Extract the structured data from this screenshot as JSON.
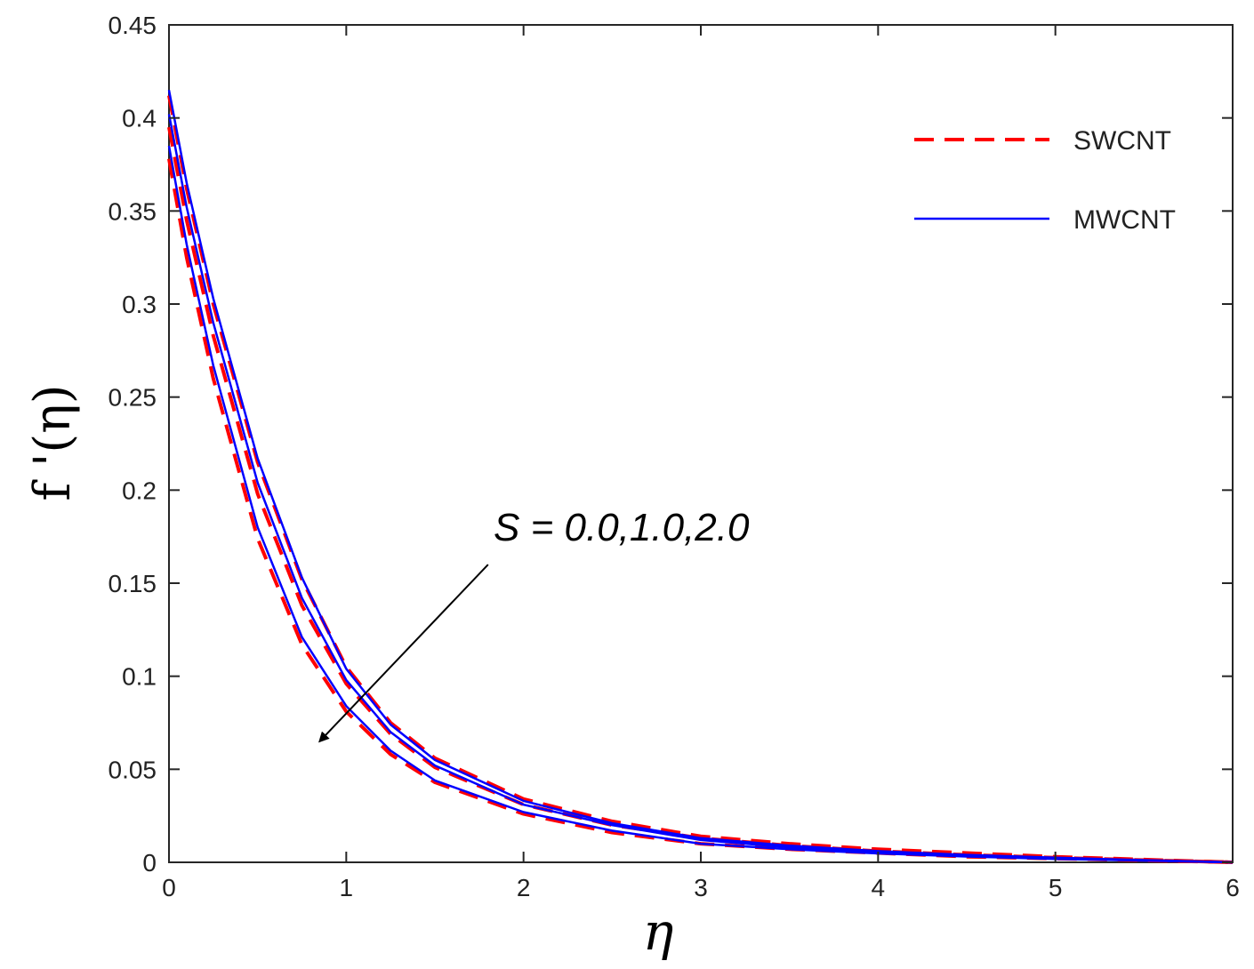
{
  "chart_data": {
    "type": "line",
    "title": "",
    "xlabel": "η",
    "ylabel": "f '(η)",
    "xlim": [
      0,
      6
    ],
    "ylim": [
      0,
      0.45
    ],
    "xticks": [
      0,
      1,
      2,
      3,
      4,
      5,
      6
    ],
    "yticks": [
      0,
      0.05,
      0.1,
      0.15,
      0.2,
      0.25,
      0.3,
      0.35,
      0.4,
      0.45
    ],
    "grid": false,
    "legend_position": "top-right",
    "annotation": {
      "text": "S = 0.0,1.0,2.0",
      "arrow_from": [
        1.8,
        0.16
      ],
      "arrow_to": [
        0.85,
        0.065
      ]
    },
    "colors": {
      "SWCNT": "#ff0000",
      "MWCNT": "#0000ff"
    },
    "x": [
      0,
      0.1,
      0.25,
      0.5,
      0.75,
      1.0,
      1.25,
      1.5,
      2.0,
      2.5,
      3.0,
      3.5,
      4.0,
      4.5,
      5.0,
      5.5,
      6.0
    ],
    "series": [
      {
        "name": "SWCNT",
        "style": "dashed",
        "values": [
          0.412,
          0.362,
          0.3,
          0.215,
          0.152,
          0.105,
          0.075,
          0.056,
          0.034,
          0.022,
          0.014,
          0.01,
          0.007,
          0.005,
          0.003,
          0.0015,
          0.0
        ]
      },
      {
        "name": "SWCNT",
        "style": "dashed",
        "values": [
          0.395,
          0.345,
          0.283,
          0.198,
          0.138,
          0.096,
          0.069,
          0.051,
          0.031,
          0.02,
          0.013,
          0.009,
          0.006,
          0.004,
          0.0025,
          0.0012,
          0.0
        ]
      },
      {
        "name": "SWCNT",
        "style": "dashed",
        "values": [
          0.378,
          0.325,
          0.26,
          0.174,
          0.117,
          0.081,
          0.058,
          0.043,
          0.026,
          0.016,
          0.01,
          0.007,
          0.005,
          0.003,
          0.002,
          0.001,
          0.0
        ]
      },
      {
        "name": "MWCNT",
        "style": "solid",
        "values": [
          0.415,
          0.365,
          0.303,
          0.217,
          0.153,
          0.104,
          0.074,
          0.055,
          0.033,
          0.021,
          0.013,
          0.009,
          0.006,
          0.004,
          0.0025,
          0.0012,
          0.0
        ]
      },
      {
        "name": "MWCNT",
        "style": "solid",
        "values": [
          0.402,
          0.352,
          0.29,
          0.204,
          0.142,
          0.098,
          0.07,
          0.052,
          0.031,
          0.02,
          0.012,
          0.008,
          0.0055,
          0.0037,
          0.0022,
          0.0011,
          0.0
        ]
      },
      {
        "name": "MWCNT",
        "style": "solid",
        "values": [
          0.385,
          0.332,
          0.267,
          0.18,
          0.121,
          0.084,
          0.06,
          0.044,
          0.027,
          0.017,
          0.01,
          0.007,
          0.0048,
          0.0031,
          0.0018,
          0.0009,
          0.0
        ]
      }
    ]
  }
}
